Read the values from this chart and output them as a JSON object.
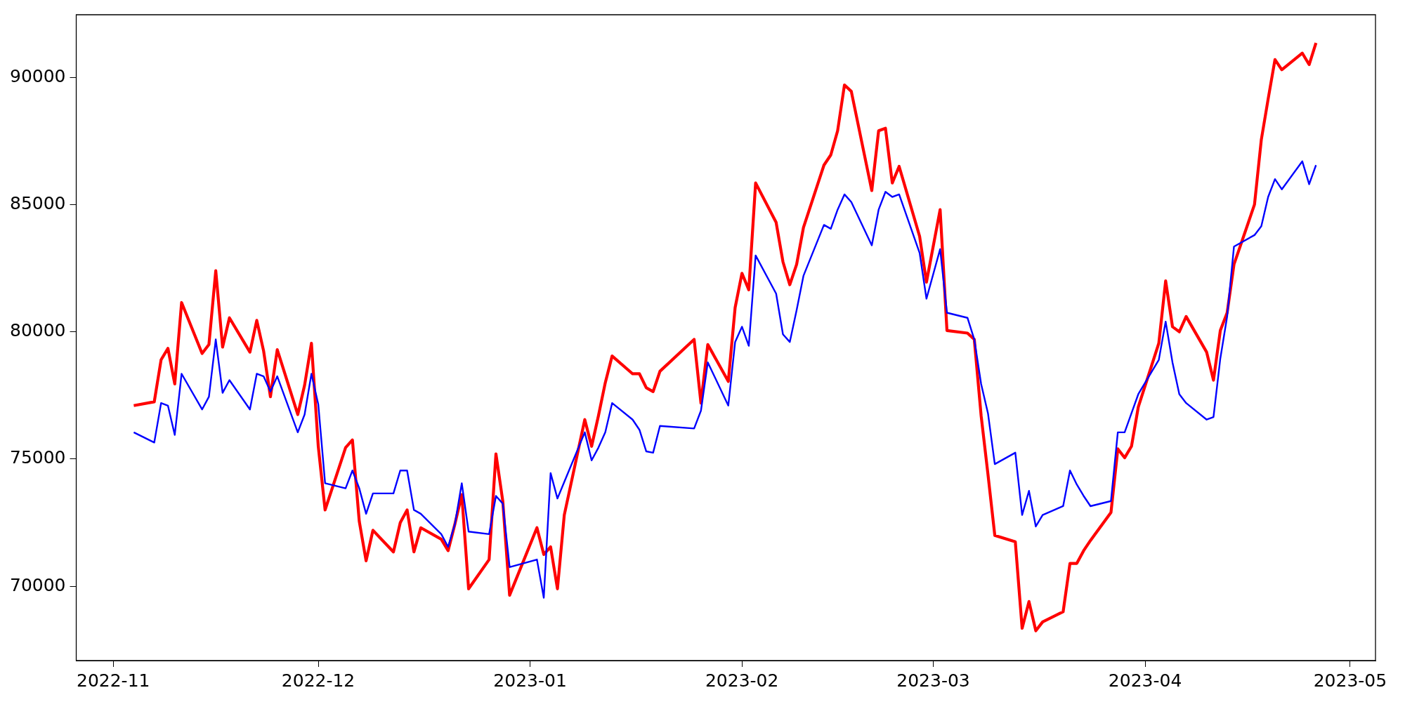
{
  "chart_data": {
    "type": "line",
    "x": [
      "2022-11-04",
      "2022-11-07",
      "2022-11-08",
      "2022-11-09",
      "2022-11-10",
      "2022-11-11",
      "2022-11-14",
      "2022-11-15",
      "2022-11-16",
      "2022-11-17",
      "2022-11-18",
      "2022-11-21",
      "2022-11-22",
      "2022-11-23",
      "2022-11-24",
      "2022-11-25",
      "2022-11-28",
      "2022-11-29",
      "2022-11-30",
      "2022-12-01",
      "2022-12-02",
      "2022-12-05",
      "2022-12-06",
      "2022-12-07",
      "2022-12-08",
      "2022-12-09",
      "2022-12-12",
      "2022-12-13",
      "2022-12-14",
      "2022-12-15",
      "2022-12-16",
      "2022-12-19",
      "2022-12-20",
      "2022-12-21",
      "2022-12-22",
      "2022-12-23",
      "2022-12-26",
      "2022-12-27",
      "2022-12-28",
      "2022-12-29",
      "2023-01-02",
      "2023-01-03",
      "2023-01-04",
      "2023-01-05",
      "2023-01-06",
      "2023-01-09",
      "2023-01-10",
      "2023-01-11",
      "2023-01-12",
      "2023-01-13",
      "2023-01-16",
      "2023-01-17",
      "2023-01-18",
      "2023-01-19",
      "2023-01-20",
      "2023-01-25",
      "2023-01-26",
      "2023-01-27",
      "2023-01-30",
      "2023-01-31",
      "2023-02-01",
      "2023-02-02",
      "2023-02-03",
      "2023-02-06",
      "2023-02-07",
      "2023-02-08",
      "2023-02-09",
      "2023-02-10",
      "2023-02-13",
      "2023-02-14",
      "2023-02-15",
      "2023-02-16",
      "2023-02-17",
      "2023-02-20",
      "2023-02-21",
      "2023-02-22",
      "2023-02-23",
      "2023-02-24",
      "2023-02-27",
      "2023-02-28",
      "2023-03-02",
      "2023-03-03",
      "2023-03-06",
      "2023-03-07",
      "2023-03-08",
      "2023-03-09",
      "2023-03-10",
      "2023-03-13",
      "2023-03-14",
      "2023-03-15",
      "2023-03-16",
      "2023-03-17",
      "2023-03-20",
      "2023-03-21",
      "2023-03-22",
      "2023-03-23",
      "2023-03-24",
      "2023-03-27",
      "2023-03-28",
      "2023-03-29",
      "2023-03-30",
      "2023-03-31",
      "2023-04-03",
      "2023-04-04",
      "2023-04-05",
      "2023-04-06",
      "2023-04-07",
      "2023-04-10",
      "2023-04-11",
      "2023-04-12",
      "2023-04-13",
      "2023-04-14",
      "2023-04-17",
      "2023-04-18",
      "2023-04-19",
      "2023-04-20",
      "2023-04-21",
      "2023-04-24",
      "2023-04-25",
      "2023-04-26"
    ],
    "series": [
      {
        "color": "#ff0000",
        "values": [
          77100,
          77250,
          78900,
          79350,
          77950,
          81150,
          79150,
          79500,
          82400,
          79400,
          80550,
          79200,
          80450,
          79250,
          77450,
          79300,
          76750,
          77900,
          79550,
          75500,
          73000,
          75450,
          75750,
          72550,
          71000,
          72200,
          71350,
          72500,
          73000,
          71350,
          72300,
          71850,
          71400,
          72450,
          73600,
          69900,
          71050,
          75200,
          73350,
          69650,
          72300,
          71250,
          71550,
          69900,
          72800,
          76550,
          75500,
          76700,
          78000,
          79050,
          78350,
          78350,
          77800,
          77650,
          78450,
          79700,
          77200,
          79500,
          78050,
          80950,
          82300,
          81650,
          85850,
          84300,
          82750,
          81850,
          82650,
          84100,
          86550,
          86950,
          87900,
          89700,
          89450,
          85550,
          87900,
          88000,
          85850,
          86500,
          83750,
          81950,
          84800,
          80050,
          79950,
          79700,
          76700,
          74400,
          72000,
          71750,
          68350,
          69400,
          68250,
          68600,
          69000,
          70900,
          70900,
          71400,
          71800,
          72900,
          75400,
          75050,
          75500,
          77050,
          79550,
          82000,
          80200,
          80000,
          80600,
          79200,
          78100,
          80050,
          80750,
          82650,
          85000,
          87550,
          89150,
          90700,
          90300,
          90950,
          90500,
          91350
        ]
      },
      {
        "color": "#0000ff",
        "values": [
          76050,
          75650,
          77200,
          77100,
          75950,
          78350,
          76950,
          77450,
          79700,
          77600,
          78100,
          76950,
          78350,
          78250,
          77650,
          78250,
          76050,
          76750,
          78350,
          77150,
          74050,
          73850,
          74550,
          73850,
          72850,
          73650,
          73650,
          74550,
          74550,
          73000,
          72850,
          72050,
          71550,
          72450,
          74050,
          72150,
          72050,
          73550,
          73250,
          70750,
          71050,
          69550,
          74450,
          73450,
          74100,
          76050,
          74950,
          75450,
          76050,
          77200,
          76550,
          76150,
          75300,
          75250,
          76300,
          76200,
          76900,
          78800,
          77100,
          79600,
          80200,
          79450,
          83000,
          81500,
          79900,
          79600,
          80850,
          82200,
          84200,
          84050,
          84800,
          85400,
          85100,
          83400,
          84800,
          85500,
          85300,
          85400,
          83100,
          81300,
          83250,
          80750,
          80550,
          79700,
          77950,
          76800,
          74800,
          75250,
          72800,
          73750,
          72350,
          72800,
          73150,
          74550,
          74000,
          73550,
          73150,
          73350,
          76050,
          76050,
          76800,
          77550,
          78900,
          80400,
          78800,
          77550,
          77200,
          76550,
          76650,
          78950,
          80600,
          83350,
          83800,
          84150,
          85300,
          86000,
          85600,
          86700,
          85800,
          86550
        ]
      }
    ],
    "xlim": [
      "2022-10-26T14:00",
      "2023-05-04T17:00"
    ],
    "xticks": [
      "2022-11",
      "2022-12",
      "2023-01",
      "2023-02",
      "2023-03",
      "2023-04",
      "2023-05"
    ],
    "ylim": [
      67080,
      92460
    ],
    "yticks": [
      70000,
      75000,
      80000,
      85000,
      90000
    ]
  }
}
